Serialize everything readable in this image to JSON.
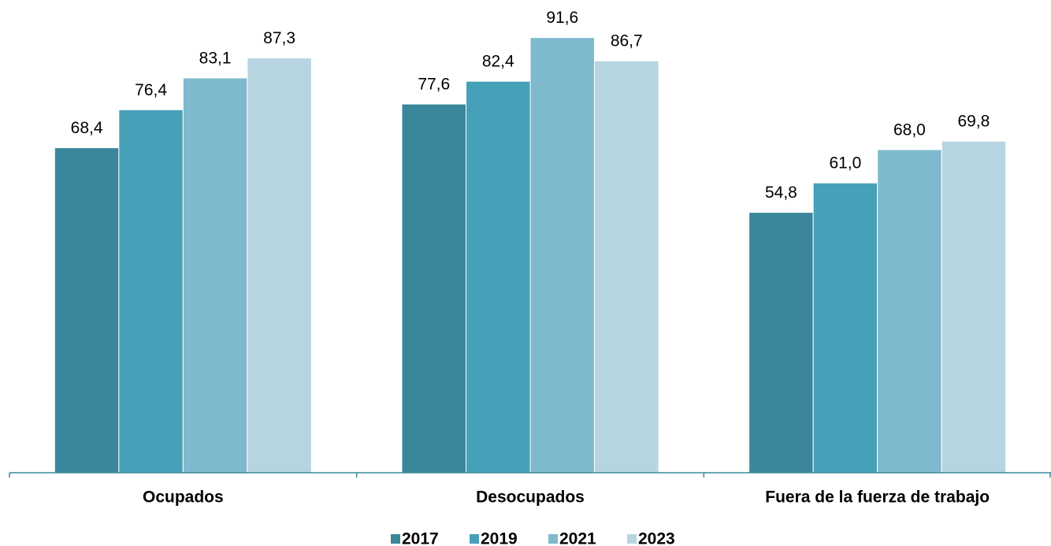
{
  "chart_data": {
    "type": "bar",
    "categories": [
      "Ocupados",
      "Desocupados",
      "Fuera de la fuerza de trabajo"
    ],
    "series": [
      {
        "name": "2017",
        "color": "#3a869a",
        "values": [
          68.4,
          77.6,
          54.8
        ],
        "value_labels": [
          "68,4",
          "77,6",
          "54,8"
        ]
      },
      {
        "name": "2019",
        "color": "#46a0b8",
        "values": [
          76.4,
          82.4,
          61.0
        ],
        "value_labels": [
          "76,4",
          "82,4",
          "61,0"
        ]
      },
      {
        "name": "2021",
        "color": "#7fb9ce",
        "values": [
          83.1,
          91.6,
          68.0
        ],
        "value_labels": [
          "83,1",
          "91,6",
          "68,0"
        ]
      },
      {
        "name": "2023",
        "color": "#b7d5e0",
        "values": [
          87.3,
          86.7,
          69.8
        ],
        "value_labels": [
          "87,3",
          "86,7",
          "69,8"
        ]
      }
    ],
    "ylim": [
      0,
      100
    ],
    "legend": "bottom"
  }
}
